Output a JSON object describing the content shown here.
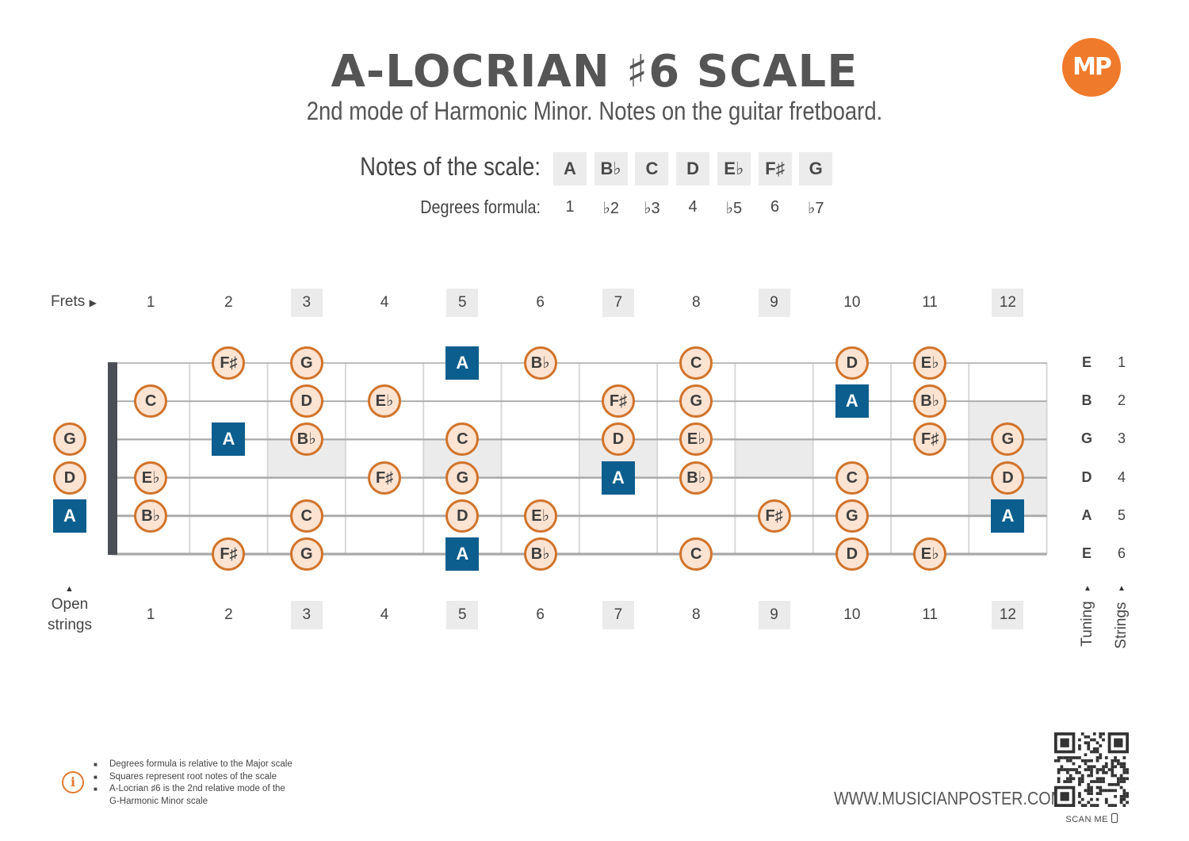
{
  "header": {
    "title": "A-LOCRIAN ♯6 SCALE",
    "subtitle": "2nd mode of Harmonic Minor. Notes on the guitar fretboard.",
    "logo_text": "MP"
  },
  "scale": {
    "notes_label": "Notes of the scale:",
    "degrees_label": "Degrees formula:",
    "notes": [
      "A",
      "B♭",
      "C",
      "D",
      "E♭",
      "F♯",
      "G"
    ],
    "degrees": [
      "1",
      "♭2",
      "♭3",
      "4",
      "♭5",
      "6",
      "♭7"
    ]
  },
  "fretboard": {
    "frets_label": "Frets",
    "open_label_line1": "Open",
    "open_label_line2": "strings",
    "tuning_label": "Tuning",
    "strings_label": "Strings",
    "fret_numbers": [
      "1",
      "2",
      "3",
      "4",
      "5",
      "6",
      "7",
      "8",
      "9",
      "10",
      "11",
      "12"
    ],
    "marked_frets": [
      3,
      5,
      7,
      9,
      12
    ],
    "tuning": [
      "E",
      "B",
      "G",
      "D",
      "A",
      "E"
    ],
    "string_numbers": [
      "1",
      "2",
      "3",
      "4",
      "5",
      "6"
    ],
    "notes": [
      {
        "string": 1,
        "fret": 2,
        "note": "F♯"
      },
      {
        "string": 1,
        "fret": 3,
        "note": "G"
      },
      {
        "string": 1,
        "fret": 5,
        "note": "A",
        "root": true
      },
      {
        "string": 1,
        "fret": 6,
        "note": "B♭"
      },
      {
        "string": 1,
        "fret": 8,
        "note": "C"
      },
      {
        "string": 1,
        "fret": 10,
        "note": "D"
      },
      {
        "string": 1,
        "fret": 11,
        "note": "E♭"
      },
      {
        "string": 2,
        "fret": 1,
        "note": "C"
      },
      {
        "string": 2,
        "fret": 3,
        "note": "D"
      },
      {
        "string": 2,
        "fret": 4,
        "note": "E♭"
      },
      {
        "string": 2,
        "fret": 7,
        "note": "F♯"
      },
      {
        "string": 2,
        "fret": 8,
        "note": "G"
      },
      {
        "string": 2,
        "fret": 10,
        "note": "A",
        "root": true
      },
      {
        "string": 2,
        "fret": 11,
        "note": "B♭"
      },
      {
        "string": 3,
        "fret": 0,
        "note": "G"
      },
      {
        "string": 3,
        "fret": 2,
        "note": "A",
        "root": true
      },
      {
        "string": 3,
        "fret": 3,
        "note": "B♭"
      },
      {
        "string": 3,
        "fret": 5,
        "note": "C"
      },
      {
        "string": 3,
        "fret": 7,
        "note": "D"
      },
      {
        "string": 3,
        "fret": 8,
        "note": "E♭"
      },
      {
        "string": 3,
        "fret": 11,
        "note": "F♯"
      },
      {
        "string": 3,
        "fret": 12,
        "note": "G"
      },
      {
        "string": 4,
        "fret": 0,
        "note": "D"
      },
      {
        "string": 4,
        "fret": 1,
        "note": "E♭"
      },
      {
        "string": 4,
        "fret": 4,
        "note": "F♯"
      },
      {
        "string": 4,
        "fret": 5,
        "note": "G"
      },
      {
        "string": 4,
        "fret": 7,
        "note": "A",
        "root": true
      },
      {
        "string": 4,
        "fret": 8,
        "note": "B♭"
      },
      {
        "string": 4,
        "fret": 10,
        "note": "C"
      },
      {
        "string": 4,
        "fret": 12,
        "note": "D"
      },
      {
        "string": 5,
        "fret": 0,
        "note": "A",
        "root": true
      },
      {
        "string": 5,
        "fret": 1,
        "note": "B♭"
      },
      {
        "string": 5,
        "fret": 3,
        "note": "C"
      },
      {
        "string": 5,
        "fret": 5,
        "note": "D"
      },
      {
        "string": 5,
        "fret": 6,
        "note": "E♭"
      },
      {
        "string": 5,
        "fret": 9,
        "note": "F♯"
      },
      {
        "string": 5,
        "fret": 10,
        "note": "G"
      },
      {
        "string": 5,
        "fret": 12,
        "note": "A",
        "root": true
      },
      {
        "string": 6,
        "fret": 2,
        "note": "F♯"
      },
      {
        "string": 6,
        "fret": 3,
        "note": "G"
      },
      {
        "string": 6,
        "fret": 5,
        "note": "A",
        "root": true
      },
      {
        "string": 6,
        "fret": 6,
        "note": "B♭"
      },
      {
        "string": 6,
        "fret": 8,
        "note": "C"
      },
      {
        "string": 6,
        "fret": 10,
        "note": "D"
      },
      {
        "string": 6,
        "fret": 11,
        "note": "E♭"
      }
    ]
  },
  "info": {
    "icon": "info-icon",
    "items": [
      "Degrees formula is relative to the Major scale",
      "Squares represent root notes of the scale",
      "A-Locrian ♯6 is the 2nd relative mode of the",
      "G-Harmonic Minor scale"
    ]
  },
  "footer": {
    "website": "WWW.MUSICIANPOSTER.COM",
    "scan_label": "SCAN ME",
    "qr_icon": "qr-code-icon",
    "phone_icon": "phone-icon"
  },
  "colors": {
    "root_fill": "#0b5e8e",
    "note_fill": "#fde3d2",
    "note_border": "#d1732a",
    "logo": "#f07a2b",
    "marker_shade": "#ebebeb"
  }
}
